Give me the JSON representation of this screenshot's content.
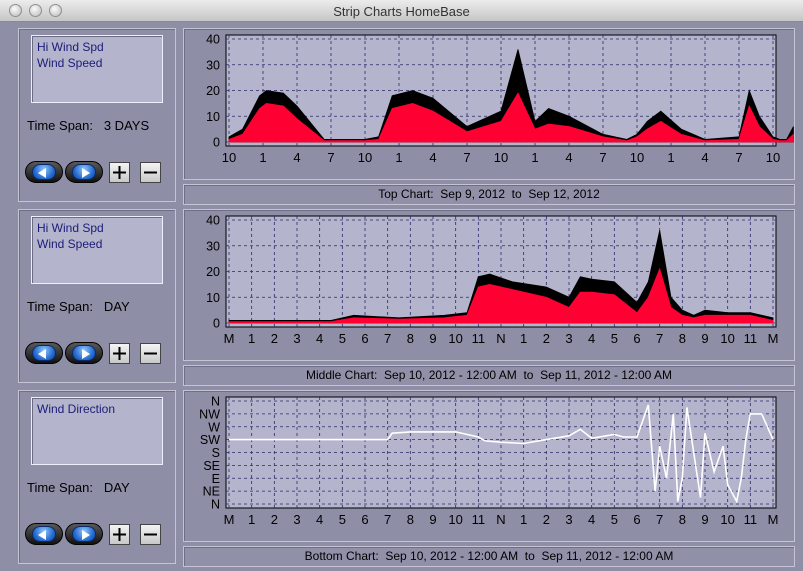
{
  "window": {
    "title": "Strip Charts    HomeBase"
  },
  "colors": {
    "background": "#8e8ea6",
    "plot_bg": "#b4b4cc",
    "label_text": "#1c1c78",
    "series_hi": "#000000",
    "series_speed": "#ff0033",
    "direction": "#ffffff"
  },
  "icons": {
    "prev": "left-arrow-icon",
    "next": "right-arrow-icon",
    "zoom_in": "plus-icon",
    "zoom_out": "minus-icon"
  },
  "strips": [
    {
      "labels": [
        "Hi Wind Spd",
        "Wind Speed"
      ],
      "timespan_label": "Time Span:",
      "timespan_value": "3 DAYS",
      "caption": "Top Chart:  Sep 9, 2012  to  Sep 12, 2012"
    },
    {
      "labels": [
        "Hi Wind Spd",
        "Wind Speed"
      ],
      "timespan_label": "Time Span:",
      "timespan_value": "DAY",
      "caption": "Middle Chart:  Sep 10, 2012 - 12:00 AM  to  Sep 11, 2012 - 12:00 AM"
    },
    {
      "labels": [
        "Wind Direction"
      ],
      "timespan_label": "Time Span:",
      "timespan_value": "DAY",
      "caption": "Bottom Chart:  Sep 10, 2012 - 12:00 AM  to  Sep 11, 2012 - 12:00 AM"
    }
  ],
  "chart_data": [
    {
      "type": "area",
      "ylim": [
        0,
        40
      ],
      "y_ticks": [
        "0",
        "10",
        "20",
        "30",
        "40"
      ],
      "x_ticks": [
        "10",
        "1",
        "4",
        "7",
        "10",
        "1",
        "4",
        "7",
        "10",
        "1",
        "4",
        "7",
        "10",
        "1",
        "4",
        "7",
        "10"
      ],
      "series": [
        {
          "name": "Hi Wind Spd",
          "color": "#000000",
          "x": [
            0,
            0.4,
            0.9,
            1.1,
            1.6,
            2,
            2.8,
            3.3,
            3.8,
            4,
            4.4,
            4.8,
            5.4,
            6,
            7,
            8,
            8.5,
            9,
            9.4,
            10,
            11,
            11.7,
            12,
            12.3,
            12.7,
            13.3,
            14,
            15,
            15.3,
            15.6,
            16,
            16.2,
            16.4,
            16.6
          ],
          "values": [
            2,
            5,
            18,
            20,
            19,
            14,
            1,
            1,
            1,
            1,
            2,
            18,
            20,
            17,
            6,
            12,
            36,
            8,
            13,
            10,
            3,
            1,
            3,
            8,
            12,
            5,
            1,
            2,
            20,
            10,
            2,
            1,
            1,
            6
          ]
        },
        {
          "name": "Wind Speed",
          "color": "#ff0033",
          "x": [
            0,
            0.4,
            0.9,
            1.1,
            1.6,
            2,
            2.8,
            3.3,
            3.8,
            4,
            4.4,
            4.8,
            5.4,
            6,
            7,
            8,
            8.5,
            9,
            9.4,
            10,
            11,
            11.7,
            12,
            12.3,
            12.7,
            13.3,
            14,
            15,
            15.3,
            15.6,
            16,
            16.2,
            16.4,
            16.6
          ],
          "values": [
            1,
            3,
            13,
            15,
            14,
            9,
            0.5,
            0.5,
            0.5,
            0.5,
            1,
            13,
            15,
            12,
            4,
            8,
            19,
            5,
            7,
            6,
            2,
            0.5,
            2,
            5,
            8,
            3,
            0.5,
            1,
            14,
            6,
            1,
            0.5,
            0.5,
            3
          ]
        }
      ]
    },
    {
      "type": "area",
      "ylim": [
        0,
        40
      ],
      "y_ticks": [
        "0",
        "10",
        "20",
        "30",
        "40"
      ],
      "x_ticks": [
        "M",
        "1",
        "2",
        "3",
        "4",
        "5",
        "6",
        "7",
        "8",
        "9",
        "10",
        "11",
        "N",
        "1",
        "2",
        "3",
        "4",
        "5",
        "6",
        "7",
        "8",
        "9",
        "10",
        "11",
        "M"
      ],
      "series": [
        {
          "name": "Hi Wind Spd",
          "color": "#000000",
          "x": [
            0,
            3,
            4.5,
            5.5,
            7.5,
            9.5,
            10.5,
            11,
            11.5,
            12.5,
            14,
            15,
            15.5,
            16,
            17,
            18,
            18.5,
            19,
            19.5,
            20,
            20.5,
            21,
            22,
            23,
            24
          ],
          "values": [
            1,
            1,
            1,
            3,
            2,
            3,
            4,
            18,
            19,
            16,
            14,
            10,
            18,
            17,
            16,
            8,
            16,
            36,
            10,
            5,
            3,
            5,
            4,
            4,
            2
          ]
        },
        {
          "name": "Wind Speed",
          "color": "#ff0033",
          "x": [
            0,
            3,
            4.5,
            5.5,
            7.5,
            9.5,
            10.5,
            11,
            11.5,
            12.5,
            14,
            15,
            15.5,
            16,
            17,
            18,
            18.5,
            19,
            19.5,
            20,
            20.5,
            21,
            22,
            23,
            24
          ],
          "values": [
            0.5,
            0.5,
            0.5,
            2,
            1.5,
            2,
            3,
            14,
            15,
            13,
            10,
            6,
            12,
            12,
            11,
            4,
            10,
            21,
            6,
            3,
            2,
            3,
            3,
            3,
            1
          ]
        }
      ]
    },
    {
      "type": "line",
      "y_ticks": [
        "N",
        "NE",
        "E",
        "SE",
        "S",
        "SW",
        "W",
        "NW",
        "N"
      ],
      "x_ticks": [
        "M",
        "1",
        "2",
        "3",
        "4",
        "5",
        "6",
        "7",
        "8",
        "9",
        "10",
        "11",
        "N",
        "1",
        "2",
        "3",
        "4",
        "5",
        "6",
        "7",
        "8",
        "9",
        "10",
        "11",
        "M"
      ],
      "series": [
        {
          "name": "Wind Direction",
          "color": "#ffffff",
          "x": [
            0,
            2,
            5,
            7,
            7.2,
            8,
            10,
            11,
            11.3,
            12,
            13,
            14,
            15,
            15.5,
            16,
            17,
            17.4,
            18,
            18.5,
            18.8,
            19,
            19.3,
            19.6,
            19.8,
            20,
            20.2,
            20.5,
            20.8,
            21,
            21.4,
            21.8,
            22,
            22.4,
            22.6,
            22.8,
            23,
            23.5,
            24
          ],
          "values": [
            5,
            5,
            5,
            5,
            5.5,
            5.6,
            5.6,
            5.2,
            4.9,
            4.8,
            4.7,
            5,
            5.3,
            5.8,
            5.1,
            5.4,
            5.2,
            5.2,
            7.7,
            1,
            4.5,
            2,
            7,
            0.2,
            2,
            7.5,
            4,
            0.5,
            5.5,
            2.5,
            4.5,
            1.5,
            0.2,
            2,
            5,
            7,
            7,
            5
          ]
        }
      ]
    }
  ]
}
